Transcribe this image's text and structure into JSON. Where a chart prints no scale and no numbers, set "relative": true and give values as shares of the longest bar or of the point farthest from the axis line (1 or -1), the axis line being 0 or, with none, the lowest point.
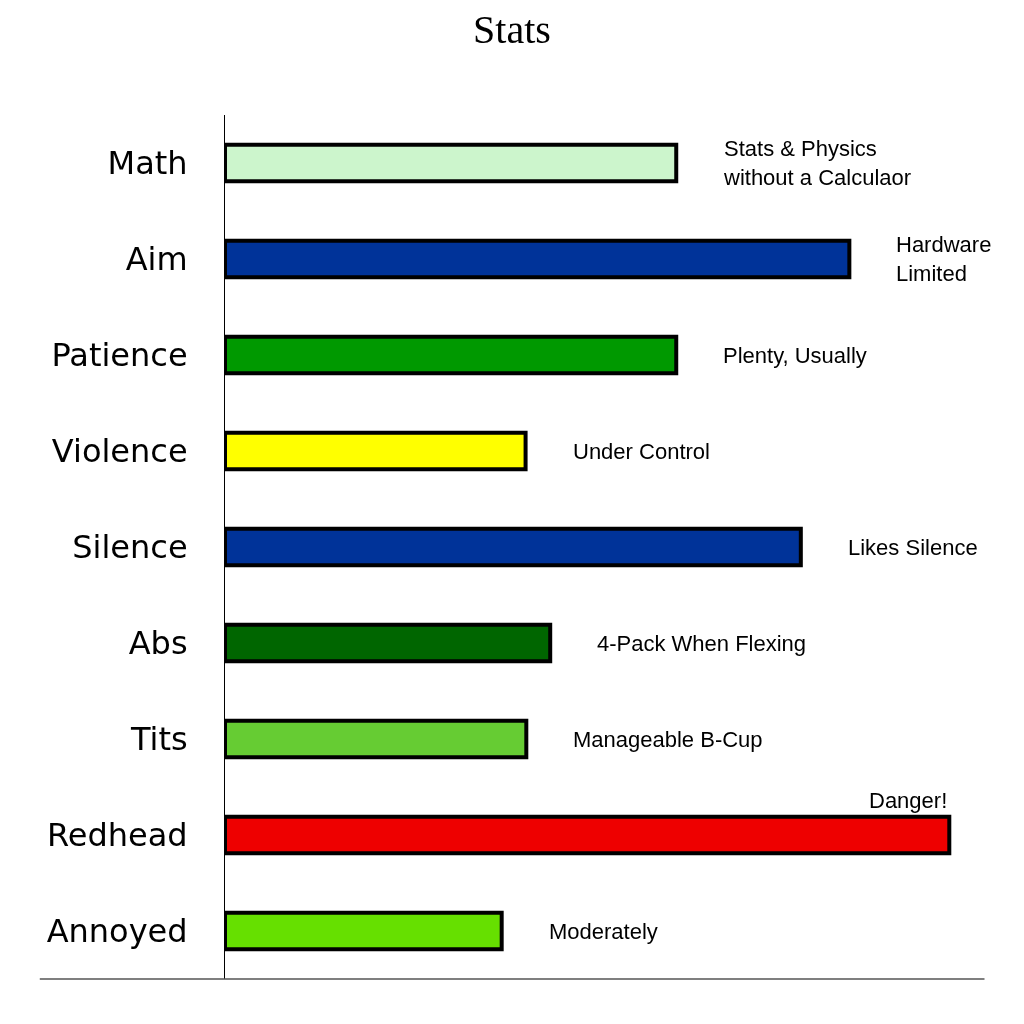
{
  "chart_data": {
    "type": "bar",
    "orientation": "horizontal",
    "relative": true,
    "title": "Stats",
    "categories": [
      "Math",
      "Aim",
      "Patience",
      "Violence",
      "Silence",
      "Abs",
      "Tits",
      "Redhead",
      "Annoyed"
    ],
    "values": [
      0.623,
      0.862,
      0.623,
      0.415,
      0.795,
      0.449,
      0.416,
      1,
      0.382
    ],
    "colors": [
      "#ccf5cc",
      "#003399",
      "#009900",
      "#ffff00",
      "#003399",
      "#006600",
      "#66cc33",
      "#ee0000",
      "#66e000"
    ],
    "annotations": [
      {
        "text": "Stats & Physics\nwithout a Calculaor",
        "x": 0.623,
        "y": "Math"
      },
      {
        "text": "Hardware\nLimited",
        "x": 0.862,
        "y": "Aim"
      },
      {
        "text": "Plenty, Usually",
        "x": 0.623,
        "y": "Patience"
      },
      {
        "text": "Under Control",
        "x": 0.415,
        "y": "Violence"
      },
      {
        "text": "Likes Silence",
        "x": 0.795,
        "y": "Silence"
      },
      {
        "text": "4-Pack When Flexing",
        "x": 0.449,
        "y": "Abs"
      },
      {
        "text": "Manageable B-Cup",
        "x": 0.416,
        "y": "Tits"
      },
      {
        "text": "Danger!",
        "x": 1,
        "y": "Redhead"
      },
      {
        "text": "Moderately",
        "x": 0.382,
        "y": "Annoyed"
      }
    ],
    "grid": false,
    "legend": false
  }
}
